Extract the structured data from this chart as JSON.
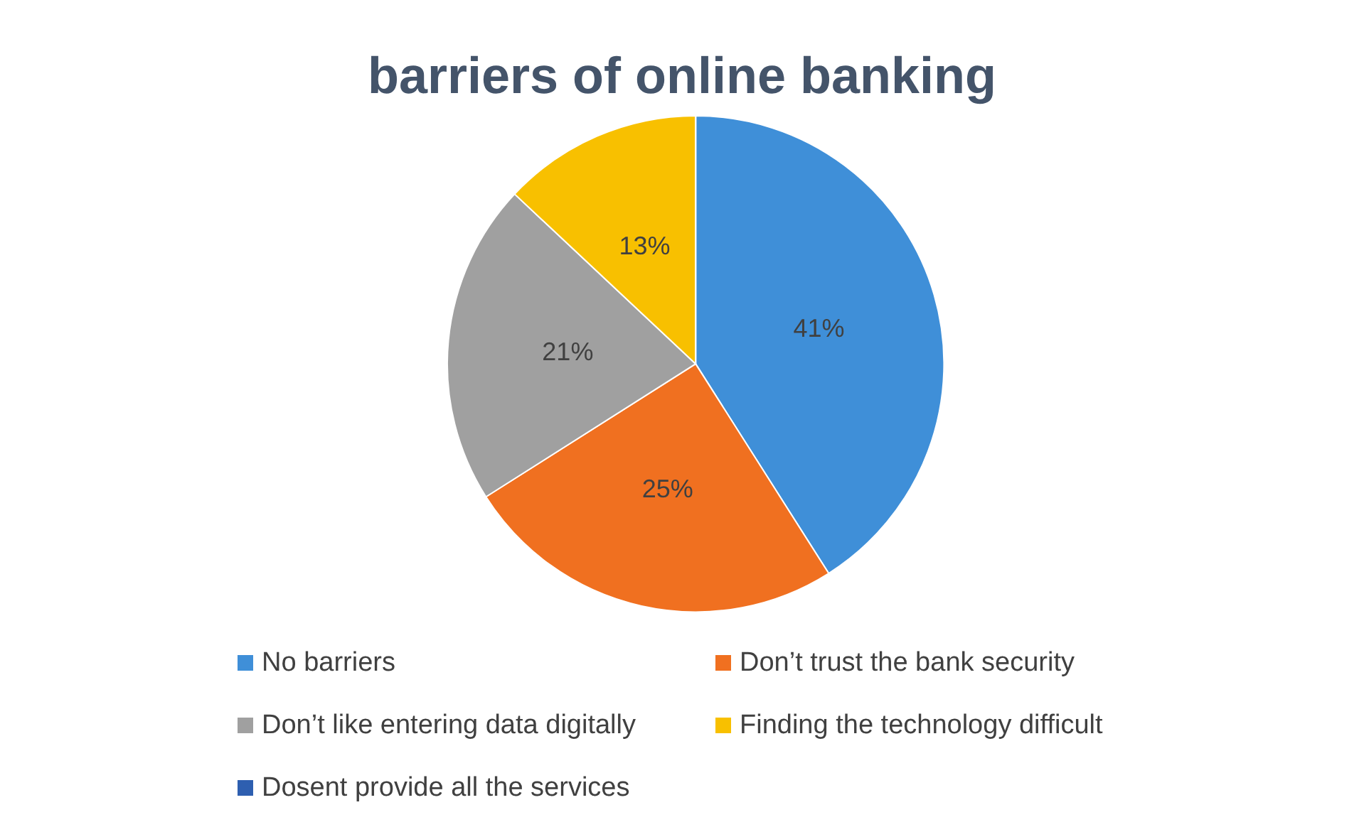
{
  "chart_data": {
    "type": "pie",
    "title": "barriers of online banking",
    "categories": [
      "No barriers",
      "Don’t trust the bank security",
      "Don’t like entering data digitally",
      "Finding the technology difficult",
      "Dosent provide all the services"
    ],
    "values": [
      41,
      25,
      21,
      13,
      0
    ],
    "value_labels": [
      "41%",
      "25%",
      "21%",
      "13%",
      null
    ],
    "colors": [
      "#3f8fd8",
      "#f07020",
      "#a0a0a0",
      "#f8c000",
      "#2e5fb0"
    ],
    "legend": "bottom"
  }
}
